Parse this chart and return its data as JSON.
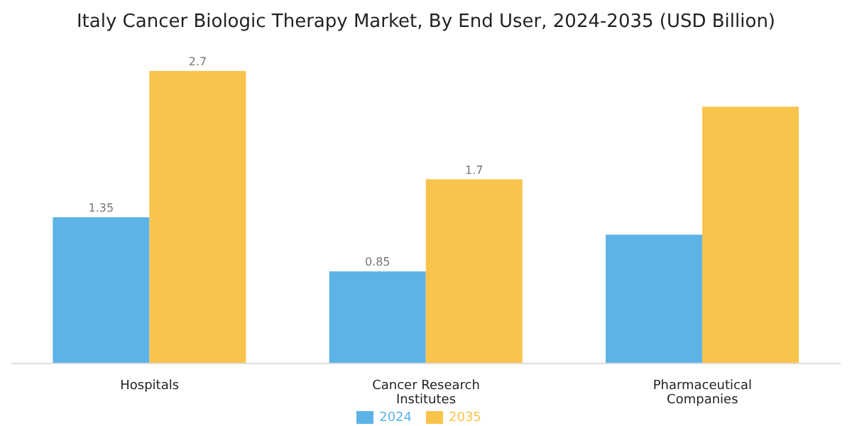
{
  "chart_data": {
    "type": "bar",
    "title": "Italy Cancer Biologic Therapy Market, By End User, 2024-2035 (USD Billion)",
    "categories": [
      "Hospitals",
      "Cancer Research Institutes",
      "Pharmaceutical Companies"
    ],
    "series": [
      {
        "name": "2024",
        "color": "#5db3e6",
        "values": [
          1.35,
          0.85,
          1.19
        ],
        "value_labels": [
          "1.35",
          "0.85",
          null
        ]
      },
      {
        "name": "2035",
        "color": "#f9c44c",
        "values": [
          2.7,
          1.7,
          2.37
        ],
        "value_labels": [
          "2.7",
          "1.7",
          null
        ]
      }
    ],
    "legend": "bottom",
    "grid": false
  }
}
